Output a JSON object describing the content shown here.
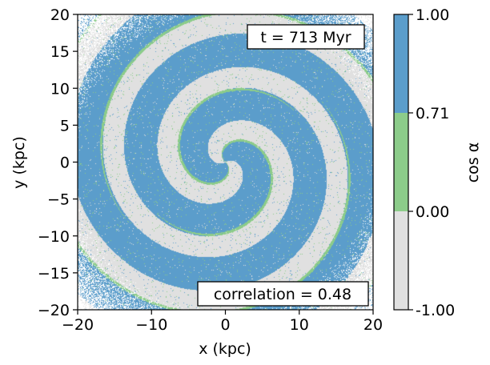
{
  "chart_data": {
    "type": "heatmap",
    "xlabel": "x (kpc)",
    "ylabel": "y (kpc)",
    "xlim": [
      -20,
      20
    ],
    "ylim": [
      -20,
      20
    ],
    "xticks": [
      -20,
      -10,
      0,
      10,
      20
    ],
    "xtick_labels": [
      "−20",
      "−10",
      "0",
      "10",
      "20"
    ],
    "yticks": [
      -20,
      -15,
      -10,
      -5,
      0,
      5,
      10,
      15,
      20
    ],
    "ytick_labels": [
      "−20",
      "−15",
      "−10",
      "−5",
      "0",
      "5",
      "10",
      "15",
      "20"
    ],
    "annotations": {
      "time": "t = 713 Myr",
      "correlation": "correlation = 0.48"
    },
    "colorbar": {
      "label": "cos α",
      "boundaries": [
        -1.0,
        0.0,
        0.71,
        1.0
      ],
      "tick_labels": [
        "-1.00",
        "0.00",
        "0.71",
        "1.00"
      ],
      "colors": [
        "#e0e0e0",
        "#8ccc8a",
        "#5b9dcb"
      ]
    },
    "pattern": {
      "description": "two-armed trailing spiral pattern of particles colored by cos alpha",
      "arms": 2,
      "colors": {
        "aligned": "#5b9dcb",
        "partial": "#8ccc8a",
        "misaligned": "#e0e0e0",
        "empty": "#ffffff"
      }
    }
  }
}
